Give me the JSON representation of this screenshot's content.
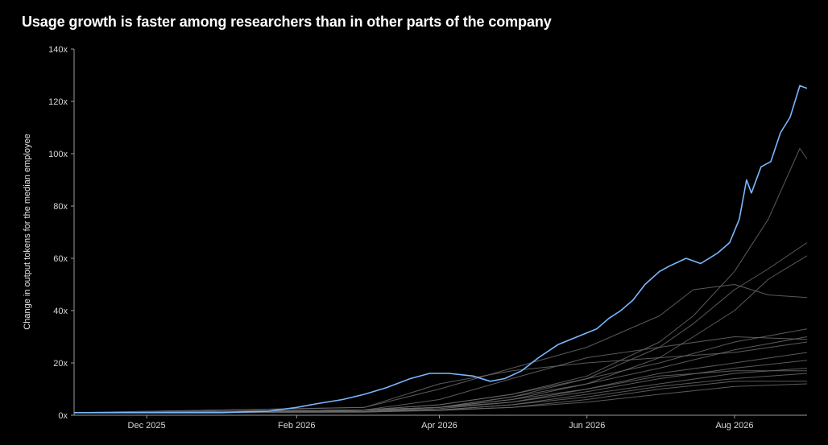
{
  "chart_data": {
    "type": "line",
    "title": "Usage growth is faster among researchers than in other parts of the company",
    "ylabel": "Change in output tokens for the median employee",
    "xlabel": "",
    "x_range": [
      "2025-11-01",
      "2026-08-31"
    ],
    "ylim": [
      0,
      140
    ],
    "y_ticks": [
      0,
      20,
      40,
      60,
      80,
      100,
      120,
      140
    ],
    "y_tick_labels": [
      "0x",
      "20x",
      "40x",
      "60x",
      "80x",
      "100x",
      "120x",
      "140x"
    ],
    "x_ticks": [
      "2025-12-01",
      "2026-02-01",
      "2026-04-01",
      "2026-06-01",
      "2026-08-01"
    ],
    "x_tick_labels": [
      "Dec 2025",
      "Feb 2026",
      "Apr 2026",
      "Jun 2026",
      "Aug 2026"
    ],
    "grid": false,
    "highlight_color": "#7ab8ff",
    "other_color": "#6a6a6a",
    "series": [
      {
        "highlight": true,
        "points": [
          [
            "2025-11-01",
            1
          ],
          [
            "2025-12-01",
            1
          ],
          [
            "2026-01-01",
            1
          ],
          [
            "2026-01-20",
            1.5
          ],
          [
            "2026-02-01",
            3
          ],
          [
            "2026-02-10",
            4.5
          ],
          [
            "2026-02-20",
            6
          ],
          [
            "2026-03-01",
            8
          ],
          [
            "2026-03-10",
            10.5
          ],
          [
            "2026-03-20",
            14
          ],
          [
            "2026-03-28",
            16
          ],
          [
            "2026-04-05",
            16
          ],
          [
            "2026-04-15",
            15
          ],
          [
            "2026-04-22",
            13
          ],
          [
            "2026-04-28",
            14
          ],
          [
            "2026-05-05",
            17
          ],
          [
            "2026-05-12",
            22
          ],
          [
            "2026-05-20",
            27
          ],
          [
            "2026-05-28",
            30
          ],
          [
            "2026-06-05",
            33
          ],
          [
            "2026-06-10",
            37
          ],
          [
            "2026-06-15",
            40
          ],
          [
            "2026-06-20",
            44
          ],
          [
            "2026-06-25",
            50
          ],
          [
            "2026-07-01",
            55
          ],
          [
            "2026-07-05",
            57
          ],
          [
            "2026-07-12",
            60
          ],
          [
            "2026-07-18",
            58
          ],
          [
            "2026-07-25",
            62
          ],
          [
            "2026-07-30",
            66
          ],
          [
            "2026-08-03",
            75
          ],
          [
            "2026-08-06",
            90
          ],
          [
            "2026-08-08",
            85
          ],
          [
            "2026-08-12",
            95
          ],
          [
            "2026-08-16",
            97
          ],
          [
            "2026-08-20",
            108
          ],
          [
            "2026-08-24",
            114
          ],
          [
            "2026-08-28",
            126
          ],
          [
            "2026-08-31",
            125
          ]
        ]
      },
      {
        "highlight": false,
        "points": [
          [
            "2025-11-01",
            1
          ],
          [
            "2026-03-01",
            2
          ],
          [
            "2026-04-01",
            4
          ],
          [
            "2026-05-01",
            8
          ],
          [
            "2026-06-01",
            15
          ],
          [
            "2026-07-01",
            28
          ],
          [
            "2026-07-15",
            38
          ],
          [
            "2026-08-01",
            55
          ],
          [
            "2026-08-15",
            75
          ],
          [
            "2026-08-28",
            102
          ],
          [
            "2026-08-31",
            98
          ]
        ]
      },
      {
        "highlight": false,
        "points": [
          [
            "2025-11-01",
            1
          ],
          [
            "2026-03-01",
            2
          ],
          [
            "2026-04-01",
            3
          ],
          [
            "2026-05-01",
            7
          ],
          [
            "2026-06-01",
            14
          ],
          [
            "2026-07-01",
            26
          ],
          [
            "2026-07-15",
            35
          ],
          [
            "2026-08-01",
            48
          ],
          [
            "2026-08-15",
            56
          ],
          [
            "2026-08-31",
            66
          ]
        ]
      },
      {
        "highlight": false,
        "points": [
          [
            "2025-11-01",
            1
          ],
          [
            "2026-03-01",
            2
          ],
          [
            "2026-04-01",
            3
          ],
          [
            "2026-05-01",
            6
          ],
          [
            "2026-06-01",
            12
          ],
          [
            "2026-07-01",
            22
          ],
          [
            "2026-07-15",
            30
          ],
          [
            "2026-08-01",
            40
          ],
          [
            "2026-08-15",
            52
          ],
          [
            "2026-08-31",
            61
          ]
        ]
      },
      {
        "highlight": false,
        "points": [
          [
            "2025-11-01",
            1
          ],
          [
            "2026-03-01",
            3
          ],
          [
            "2026-04-01",
            10
          ],
          [
            "2026-05-01",
            18
          ],
          [
            "2026-06-01",
            26
          ],
          [
            "2026-07-01",
            38
          ],
          [
            "2026-07-15",
            48
          ],
          [
            "2026-08-01",
            50
          ],
          [
            "2026-08-15",
            46
          ],
          [
            "2026-08-31",
            45
          ]
        ]
      },
      {
        "highlight": false,
        "points": [
          [
            "2025-11-01",
            1
          ],
          [
            "2026-03-01",
            2
          ],
          [
            "2026-04-01",
            4
          ],
          [
            "2026-05-01",
            8
          ],
          [
            "2026-06-01",
            14
          ],
          [
            "2026-07-01",
            20
          ],
          [
            "2026-08-01",
            28
          ],
          [
            "2026-08-31",
            33
          ]
        ]
      },
      {
        "highlight": false,
        "points": [
          [
            "2025-11-01",
            1
          ],
          [
            "2026-03-01",
            2
          ],
          [
            "2026-04-01",
            3
          ],
          [
            "2026-05-01",
            7
          ],
          [
            "2026-06-01",
            12
          ],
          [
            "2026-07-01",
            18
          ],
          [
            "2026-08-01",
            25
          ],
          [
            "2026-08-31",
            30
          ]
        ]
      },
      {
        "highlight": false,
        "points": [
          [
            "2025-11-01",
            1
          ],
          [
            "2026-03-01",
            3
          ],
          [
            "2026-04-01",
            12
          ],
          [
            "2026-05-01",
            17
          ],
          [
            "2026-06-01",
            20
          ],
          [
            "2026-07-01",
            22
          ],
          [
            "2026-08-01",
            24
          ],
          [
            "2026-08-31",
            28
          ]
        ]
      },
      {
        "highlight": false,
        "points": [
          [
            "2025-11-01",
            1
          ],
          [
            "2026-03-01",
            2
          ],
          [
            "2026-04-01",
            3
          ],
          [
            "2026-05-01",
            6
          ],
          [
            "2026-06-01",
            10
          ],
          [
            "2026-07-01",
            16
          ],
          [
            "2026-08-01",
            20
          ],
          [
            "2026-08-31",
            24
          ]
        ]
      },
      {
        "highlight": false,
        "points": [
          [
            "2025-11-01",
            1
          ],
          [
            "2026-03-01",
            1.5
          ],
          [
            "2026-04-01",
            3
          ],
          [
            "2026-05-01",
            5
          ],
          [
            "2026-06-01",
            9
          ],
          [
            "2026-07-01",
            14
          ],
          [
            "2026-08-01",
            18
          ],
          [
            "2026-08-31",
            21
          ]
        ]
      },
      {
        "highlight": false,
        "points": [
          [
            "2025-11-01",
            1
          ],
          [
            "2026-03-01",
            1.5
          ],
          [
            "2026-04-01",
            2
          ],
          [
            "2026-05-01",
            4
          ],
          [
            "2026-06-01",
            8
          ],
          [
            "2026-07-01",
            12
          ],
          [
            "2026-08-01",
            16
          ],
          [
            "2026-08-31",
            18
          ]
        ]
      },
      {
        "highlight": false,
        "points": [
          [
            "2025-11-01",
            1
          ],
          [
            "2026-03-01",
            1.5
          ],
          [
            "2026-04-01",
            2
          ],
          [
            "2026-05-01",
            4
          ],
          [
            "2026-06-01",
            7
          ],
          [
            "2026-07-01",
            11
          ],
          [
            "2026-08-01",
            14
          ],
          [
            "2026-08-31",
            16
          ]
        ]
      },
      {
        "highlight": false,
        "points": [
          [
            "2025-11-01",
            1
          ],
          [
            "2026-03-01",
            1.2
          ],
          [
            "2026-04-01",
            2
          ],
          [
            "2026-05-01",
            3
          ],
          [
            "2026-06-01",
            6
          ],
          [
            "2026-07-01",
            10
          ],
          [
            "2026-08-01",
            13
          ],
          [
            "2026-08-31",
            13
          ]
        ]
      },
      {
        "highlight": false,
        "points": [
          [
            "2025-11-01",
            1
          ],
          [
            "2026-03-01",
            1.2
          ],
          [
            "2026-04-01",
            1.8
          ],
          [
            "2026-05-01",
            3
          ],
          [
            "2026-06-01",
            5
          ],
          [
            "2026-07-01",
            8
          ],
          [
            "2026-08-01",
            11
          ],
          [
            "2026-08-31",
            12
          ]
        ]
      },
      {
        "highlight": false,
        "points": [
          [
            "2025-11-01",
            1
          ],
          [
            "2026-03-01",
            2
          ],
          [
            "2026-04-01",
            6
          ],
          [
            "2026-05-01",
            14
          ],
          [
            "2026-06-01",
            22
          ],
          [
            "2026-07-01",
            26
          ],
          [
            "2026-08-01",
            30
          ],
          [
            "2026-08-31",
            29
          ]
        ]
      },
      {
        "highlight": false,
        "points": [
          [
            "2025-11-01",
            1
          ],
          [
            "2026-03-01",
            1.5
          ],
          [
            "2026-04-01",
            2.5
          ],
          [
            "2026-05-01",
            5
          ],
          [
            "2026-06-01",
            10
          ],
          [
            "2026-07-01",
            15
          ],
          [
            "2026-08-01",
            17
          ],
          [
            "2026-08-31",
            17
          ]
        ]
      }
    ]
  }
}
